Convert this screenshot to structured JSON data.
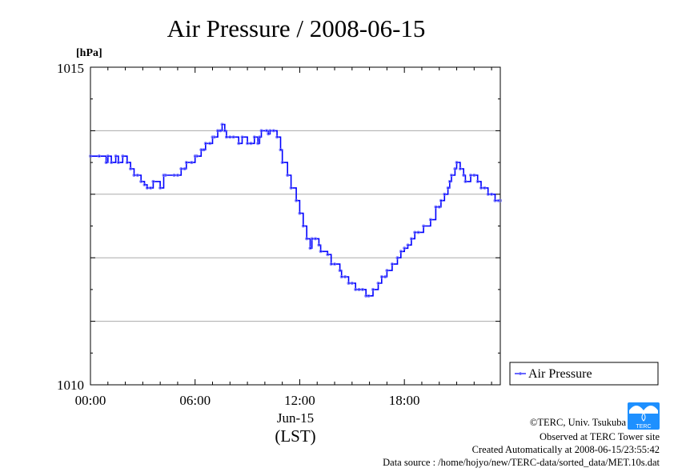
{
  "chart_data": {
    "type": "line",
    "title": "Air Pressure / 2008-06-15",
    "ylabel": "[hPa]",
    "xlabel": "(LST)",
    "date_label": "Jun-15",
    "ylim": [
      1010,
      1015
    ],
    "xlim_hours": [
      0,
      23.5
    ],
    "y_tick_labels": [
      "1015",
      "1010"
    ],
    "y_gridlines": [
      1014,
      1013,
      1012,
      1011
    ],
    "x_ticks": [
      {
        "label": "00:00",
        "hour": 0
      },
      {
        "label": "06:00",
        "hour": 6
      },
      {
        "label": "12:00",
        "hour": 12
      },
      {
        "label": "18:00",
        "hour": 18
      }
    ],
    "legend_position": "right",
    "grid": true,
    "series": [
      {
        "name": "Air Pressure",
        "color": "#0000ff",
        "style": "line with small open circle markers (10 s samples)",
        "x_hours": [
          0.0,
          0.5,
          0.9,
          1.0,
          1.2,
          1.45,
          1.6,
          1.85,
          2.1,
          2.3,
          2.5,
          2.7,
          2.9,
          3.1,
          3.25,
          3.45,
          3.6,
          4.0,
          4.2,
          4.3,
          4.8,
          5.0,
          5.2,
          5.4,
          5.5,
          5.8,
          6.0,
          6.1,
          6.35,
          6.5,
          6.6,
          6.85,
          7.0,
          7.1,
          7.3,
          7.45,
          7.55,
          7.7,
          7.8,
          8.0,
          8.2,
          8.5,
          8.7,
          9.0,
          9.2,
          9.4,
          9.6,
          9.7,
          9.8,
          10.1,
          10.2,
          10.3,
          10.5,
          10.7,
          10.9,
          11.0,
          11.3,
          11.5,
          11.8,
          12.0,
          12.2,
          12.4,
          12.6,
          12.7,
          12.9,
          13.1,
          13.2,
          13.6,
          13.8,
          14.0,
          14.3,
          14.4,
          14.6,
          14.8,
          15.0,
          15.2,
          15.4,
          15.6,
          15.8,
          15.95,
          16.2,
          16.5,
          16.7,
          16.9,
          17.0,
          17.3,
          17.6,
          17.8,
          18.0,
          18.2,
          18.4,
          18.6,
          18.8,
          19.1,
          19.5,
          19.8,
          20.0,
          20.1,
          20.3,
          20.5,
          20.6,
          20.7,
          20.9,
          21.0,
          21.2,
          21.4,
          21.5,
          21.8,
          22.0,
          22.2,
          22.4,
          22.6,
          22.8,
          23.0,
          23.2,
          23.4,
          23.5
        ],
        "values": [
          1013.6,
          1013.6,
          1013.5,
          1013.6,
          1013.5,
          1013.6,
          1013.5,
          1013.6,
          1013.5,
          1013.4,
          1013.3,
          1013.3,
          1013.2,
          1013.15,
          1013.1,
          1013.1,
          1013.2,
          1013.1,
          1013.3,
          1013.3,
          1013.3,
          1013.3,
          1013.4,
          1013.4,
          1013.5,
          1013.5,
          1013.6,
          1013.6,
          1013.7,
          1013.7,
          1013.8,
          1013.8,
          1013.9,
          1013.9,
          1014.0,
          1014.0,
          1014.1,
          1014.0,
          1013.9,
          1013.9,
          1013.9,
          1013.8,
          1013.9,
          1013.8,
          1013.8,
          1013.9,
          1013.8,
          1013.9,
          1014.0,
          1014.0,
          1013.95,
          1014.0,
          1014.0,
          1013.9,
          1013.7,
          1013.5,
          1013.3,
          1013.1,
          1012.9,
          1012.7,
          1012.5,
          1012.3,
          1012.15,
          1012.3,
          1012.3,
          1012.2,
          1012.1,
          1012.05,
          1011.9,
          1011.9,
          1011.8,
          1011.7,
          1011.7,
          1011.6,
          1011.6,
          1011.5,
          1011.5,
          1011.5,
          1011.4,
          1011.4,
          1011.5,
          1011.6,
          1011.7,
          1011.7,
          1011.8,
          1011.9,
          1012.0,
          1012.1,
          1012.15,
          1012.2,
          1012.3,
          1012.4,
          1012.4,
          1012.5,
          1012.6,
          1012.8,
          1012.8,
          1012.9,
          1013.0,
          1013.1,
          1013.2,
          1013.3,
          1013.4,
          1013.5,
          1013.4,
          1013.3,
          1013.2,
          1013.3,
          1013.3,
          1013.2,
          1013.1,
          1013.1,
          1013.0,
          1013.0,
          1012.9,
          1012.9,
          1012.9
        ]
      }
    ]
  },
  "footer": {
    "copyright": "©TERC, Univ. Tsukuba",
    "observed": "Observed at TERC Tower site",
    "created": "Created Automatically at 2008-06-15/23:55:42",
    "source": "Data source : /home/hojyo/new/TERC-data/sorted_data/MET.10s.dat",
    "logo_text": "TERC"
  }
}
